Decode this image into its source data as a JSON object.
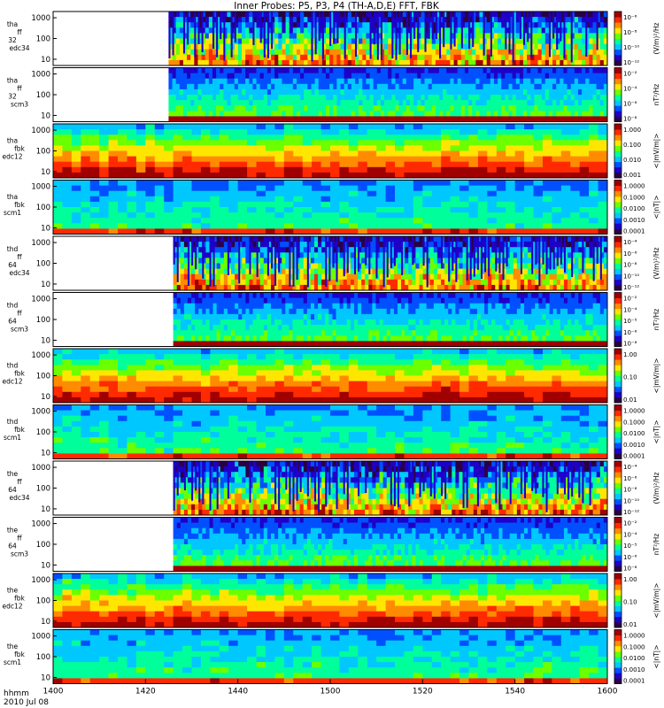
{
  "title": "Inner Probes: P5, P3, P4 (TH-A,D,E) FFT, FBK",
  "footer": {
    "row1": "hhmm",
    "row2": "2010 Jul 08"
  },
  "colors": {
    "spectrogram_scale": [
      "#2a0045",
      "#1e00c8",
      "#0050ff",
      "#00c8ff",
      "#00ff9a",
      "#6cff00",
      "#ffe600",
      "#ff8c00",
      "#ff2a00",
      "#a00000"
    ],
    "axis": "#000000",
    "background": "#ffffff"
  },
  "chart_data": {
    "type": "heatmap",
    "title": "Inner Probes: P5, P3, P4 (TH-A,D,E) FFT, FBK",
    "x_axis": {
      "label": "hhmm",
      "ticks": [
        "1400",
        "1420",
        "1440",
        "1500",
        "1520",
        "1540",
        "1600"
      ],
      "range": [
        "1400",
        "1600"
      ]
    },
    "panels": [
      {
        "ylabel": [
          "tha",
          "ff",
          "32",
          "edc34"
        ],
        "yticks": [
          "1000",
          "100",
          "10"
        ],
        "colorbar_label": "(V/m)²/Hz",
        "colorbar_ticks": [
          "10⁻⁶",
          "10⁻⁸",
          "10⁻¹⁰",
          "10⁻¹²"
        ],
        "data_start": "1425",
        "kind": "ffe"
      },
      {
        "ylabel": [
          "tha",
          "ff",
          "32",
          "scm3"
        ],
        "yticks": [
          "1000",
          "100",
          "10"
        ],
        "colorbar_label": "nT²/Hz",
        "colorbar_ticks": [
          "10⁻²",
          "10⁻⁴",
          "10⁻⁶",
          "10⁻⁸"
        ],
        "data_start": "1425",
        "kind": "ffb"
      },
      {
        "ylabel": [
          "tha",
          "fbk",
          "edc12"
        ],
        "yticks": [
          "1000",
          "100",
          "10"
        ],
        "colorbar_label": "<|mV/m|>",
        "colorbar_ticks": [
          "1.000",
          "0.100",
          "0.010",
          "0.001"
        ],
        "data_start": "1400",
        "kind": "fbe"
      },
      {
        "ylabel": [
          "tha",
          "fbk",
          "scm1"
        ],
        "yticks": [
          "1000",
          "100",
          "10"
        ],
        "colorbar_label": "<|nT|>",
        "colorbar_ticks": [
          "1.0000",
          "0.1000",
          "0.0100",
          "0.0010",
          "0.0001"
        ],
        "data_start": "1400",
        "kind": "fbb"
      },
      {
        "ylabel": [
          "thd",
          "ff",
          "64",
          "edc34"
        ],
        "yticks": [
          "1000",
          "100",
          "10"
        ],
        "colorbar_label": "(V/m)²/Hz",
        "colorbar_ticks": [
          "10⁻⁴",
          "10⁻⁶",
          "10⁻⁸",
          "10⁻¹⁰",
          "10⁻¹²"
        ],
        "data_start": "1426",
        "kind": "ffe"
      },
      {
        "ylabel": [
          "thd",
          "ff",
          "64",
          "scm3"
        ],
        "yticks": [
          "1000",
          "100",
          "10"
        ],
        "colorbar_label": "nT²/Hz",
        "colorbar_ticks": [
          "10⁻²",
          "10⁻⁴",
          "10⁻⁵",
          "10⁻⁶",
          "10⁻⁸"
        ],
        "data_start": "1426",
        "kind": "ffb"
      },
      {
        "ylabel": [
          "thd",
          "fbk",
          "edc12"
        ],
        "yticks": [
          "1000",
          "100",
          "10"
        ],
        "colorbar_label": "<|mV/m|>",
        "colorbar_ticks": [
          "1.00",
          "0.10",
          "0.01"
        ],
        "data_start": "1400",
        "kind": "fbe"
      },
      {
        "ylabel": [
          "thd",
          "fbk",
          "scm1"
        ],
        "yticks": [
          "1000",
          "100",
          "10"
        ],
        "colorbar_label": "<|nT|>",
        "colorbar_ticks": [
          "1.0000",
          "0.1000",
          "0.0100",
          "0.0010",
          "0.0001"
        ],
        "data_start": "1400",
        "kind": "fbb"
      },
      {
        "ylabel": [
          "the",
          "ff",
          "64",
          "edc34"
        ],
        "yticks": [
          "1000",
          "100",
          "10"
        ],
        "colorbar_label": "(V/m)²/Hz",
        "colorbar_ticks": [
          "10⁻⁴",
          "10⁻⁶",
          "10⁻⁸",
          "10⁻¹⁰",
          "10⁻¹²"
        ],
        "data_start": "1426",
        "kind": "ffe"
      },
      {
        "ylabel": [
          "the",
          "ff",
          "64",
          "scm3"
        ],
        "yticks": [
          "1000",
          "100",
          "10"
        ],
        "colorbar_label": "nT²/Hz",
        "colorbar_ticks": [
          "10⁻²",
          "10⁻⁴",
          "10⁻⁵",
          "10⁻⁶",
          "10⁻⁸"
        ],
        "data_start": "1426",
        "kind": "ffb"
      },
      {
        "ylabel": [
          "the",
          "fbk",
          "edc12"
        ],
        "yticks": [
          "1000",
          "100",
          "10"
        ],
        "colorbar_label": "<|mV/m|>",
        "colorbar_ticks": [
          "1.00",
          "0.10",
          "0.01"
        ],
        "data_start": "1400",
        "kind": "fbe"
      },
      {
        "ylabel": [
          "the",
          "fbk",
          "scm1"
        ],
        "yticks": [
          "1000",
          "100",
          "10"
        ],
        "colorbar_label": "<|nT|>",
        "colorbar_ticks": [
          "1.0000",
          "0.1000",
          "0.0100",
          "0.0010",
          "0.0001"
        ],
        "data_start": "1400",
        "kind": "fbb"
      }
    ]
  }
}
